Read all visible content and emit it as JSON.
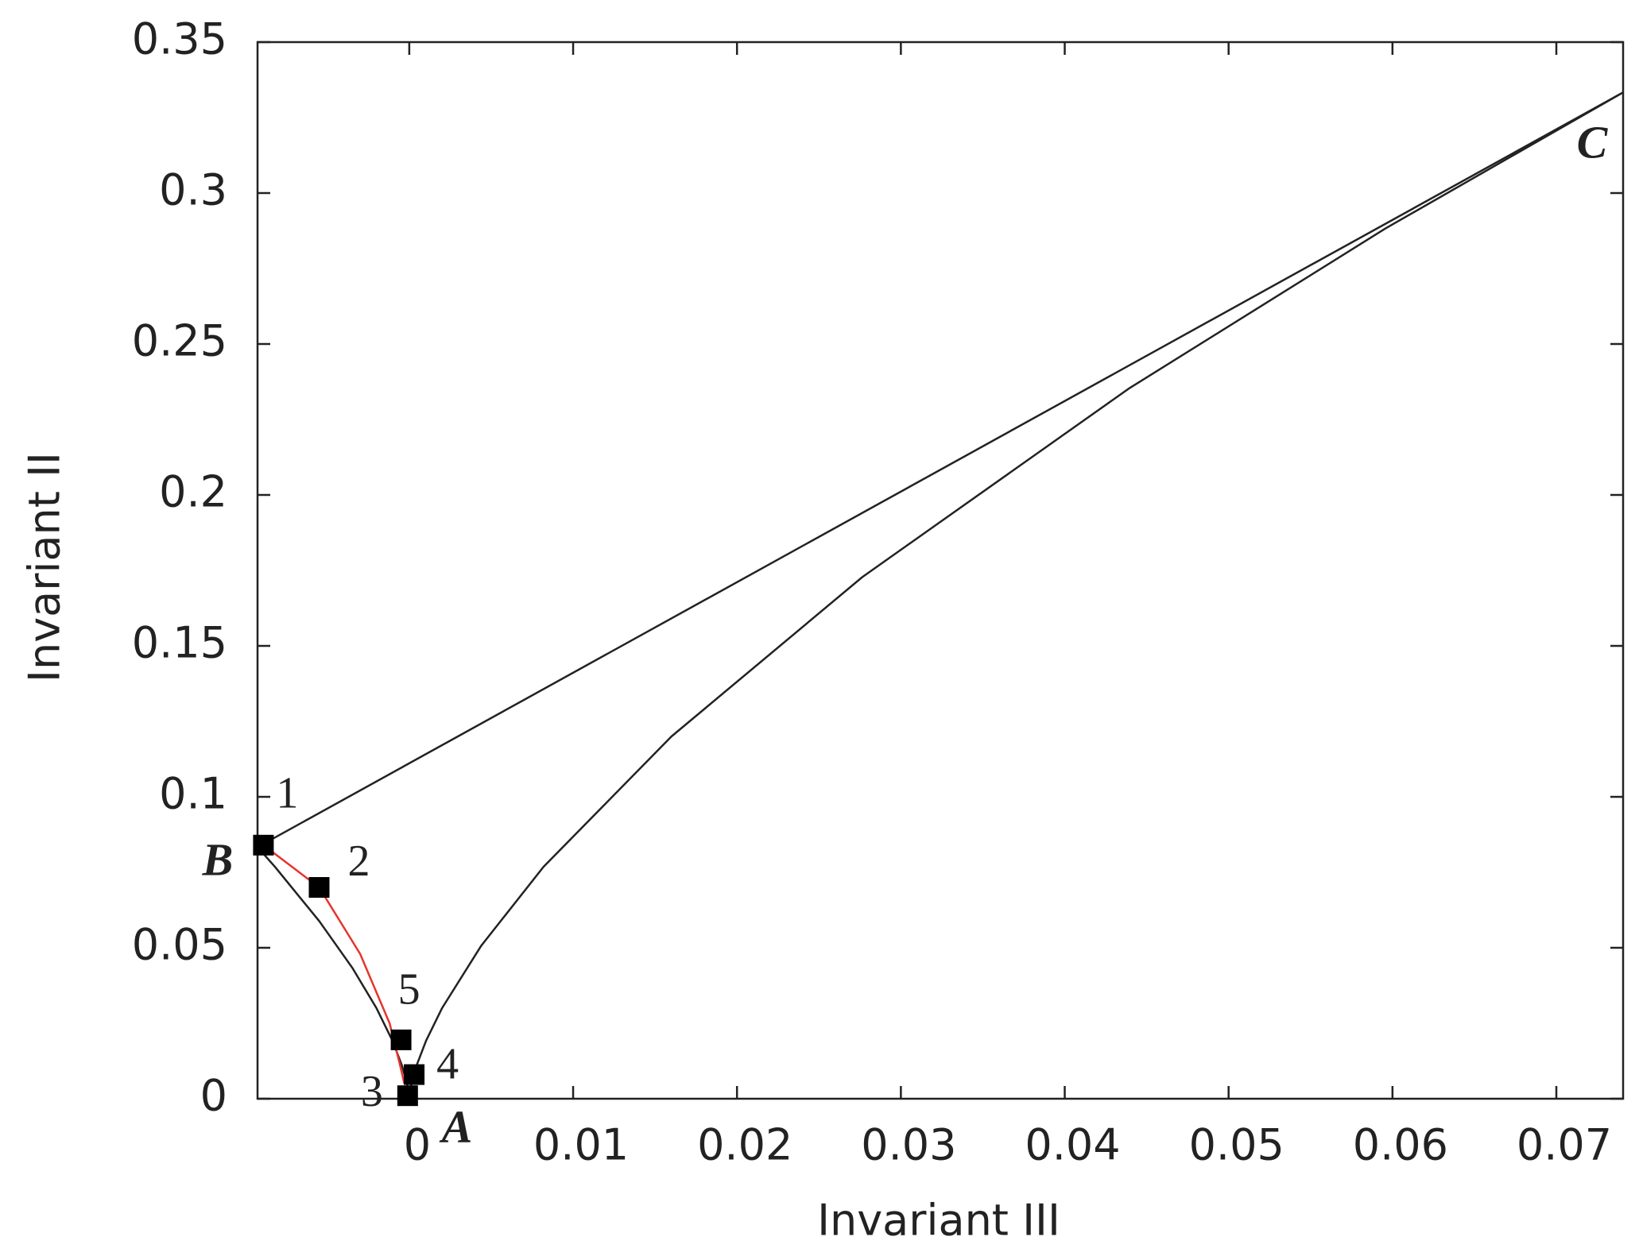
{
  "chart_data": {
    "type": "line",
    "x_label": "Invariant III",
    "y_label": "Invariant II",
    "xlim": [
      -0.009259,
      0.074074
    ],
    "ylim": [
      0,
      0.35
    ],
    "xticks": [
      0,
      0.01,
      0.02,
      0.03,
      0.04,
      0.05,
      0.06,
      0.07
    ],
    "yticks": [
      0,
      0.05,
      0.1,
      0.15,
      0.2,
      0.25,
      0.3,
      0.35
    ],
    "grid": false,
    "series": [
      {
        "color": "#222222",
        "x": [
          -0.009259,
          -0.008192,
          -0.005488,
          -0.003456,
          -0.002,
          -0.001024,
          -0.000432,
          -0.000128,
          -1.6e-05,
          0,
          1.6e-05,
          0.000128,
          0.000432,
          0.001024,
          0.002,
          0.004394,
          0.008192,
          0.016,
          0.027648,
          0.043904,
          0.059582,
          0.074074
        ],
        "y": [
          0.083333,
          0.0768,
          0.0588,
          0.0432,
          0.03,
          0.0192,
          0.0108,
          0.0048,
          0.0012,
          0,
          0.0012,
          0.0048,
          0.0108,
          0.0192,
          0.03,
          0.0507,
          0.0768,
          0.12,
          0.1728,
          0.2352,
          0.2883,
          0.333333
        ]
      },
      {
        "color": "#222222",
        "x": [
          -0.009259,
          0.074074
        ],
        "y": [
          0.083333,
          0.333333
        ]
      },
      {
        "color": "#e8332b",
        "x": [
          -0.0089,
          -0.0055,
          -0.003,
          -0.0012,
          -0.0006,
          -0.0003
        ],
        "y": [
          0.084,
          0.07,
          0.048,
          0.025,
          0.012,
          0.005
        ]
      },
      {
        "color": "#000000",
        "marker": "square",
        "line": false,
        "x": [
          -0.0089,
          -0.0055,
          -0.0001,
          0.0003,
          -0.0005
        ],
        "y": [
          0.084,
          0.07,
          0.001,
          0.008,
          0.0195
        ],
        "labels": [
          "1",
          "2",
          "3",
          "4",
          "5"
        ]
      }
    ],
    "annotations": [
      "A",
      "B",
      "C"
    ]
  }
}
